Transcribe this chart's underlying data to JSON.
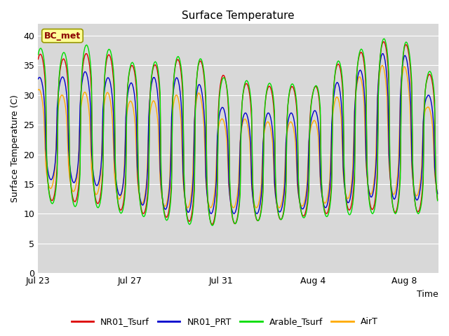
{
  "title": "Surface Temperature",
  "ylabel": "Surface Temperature (C)",
  "xlabel": "Time",
  "annotation": "BC_met",
  "ylim": [
    0,
    42
  ],
  "yticks": [
    0,
    5,
    10,
    15,
    20,
    25,
    30,
    35,
    40
  ],
  "plot_bg": "#d8d8d8",
  "figure_bg": "#ffffff",
  "grid_color": "#ffffff",
  "line_colors": {
    "NR01_Tsurf": "#dd0000",
    "NR01_PRT": "#0000cc",
    "Arable_Tsurf": "#00dd00",
    "AirT": "#ffaa00"
  },
  "line_labels": [
    "NR01_Tsurf",
    "NR01_PRT",
    "Arable_Tsurf",
    "AirT"
  ],
  "xtick_labels": [
    "Jul 23",
    "Jul 27",
    "Jul 31",
    "Aug 4",
    "Aug 8"
  ],
  "xtick_days": [
    0,
    4,
    8,
    12,
    16
  ],
  "n_days": 17.5,
  "lw": 1.0
}
